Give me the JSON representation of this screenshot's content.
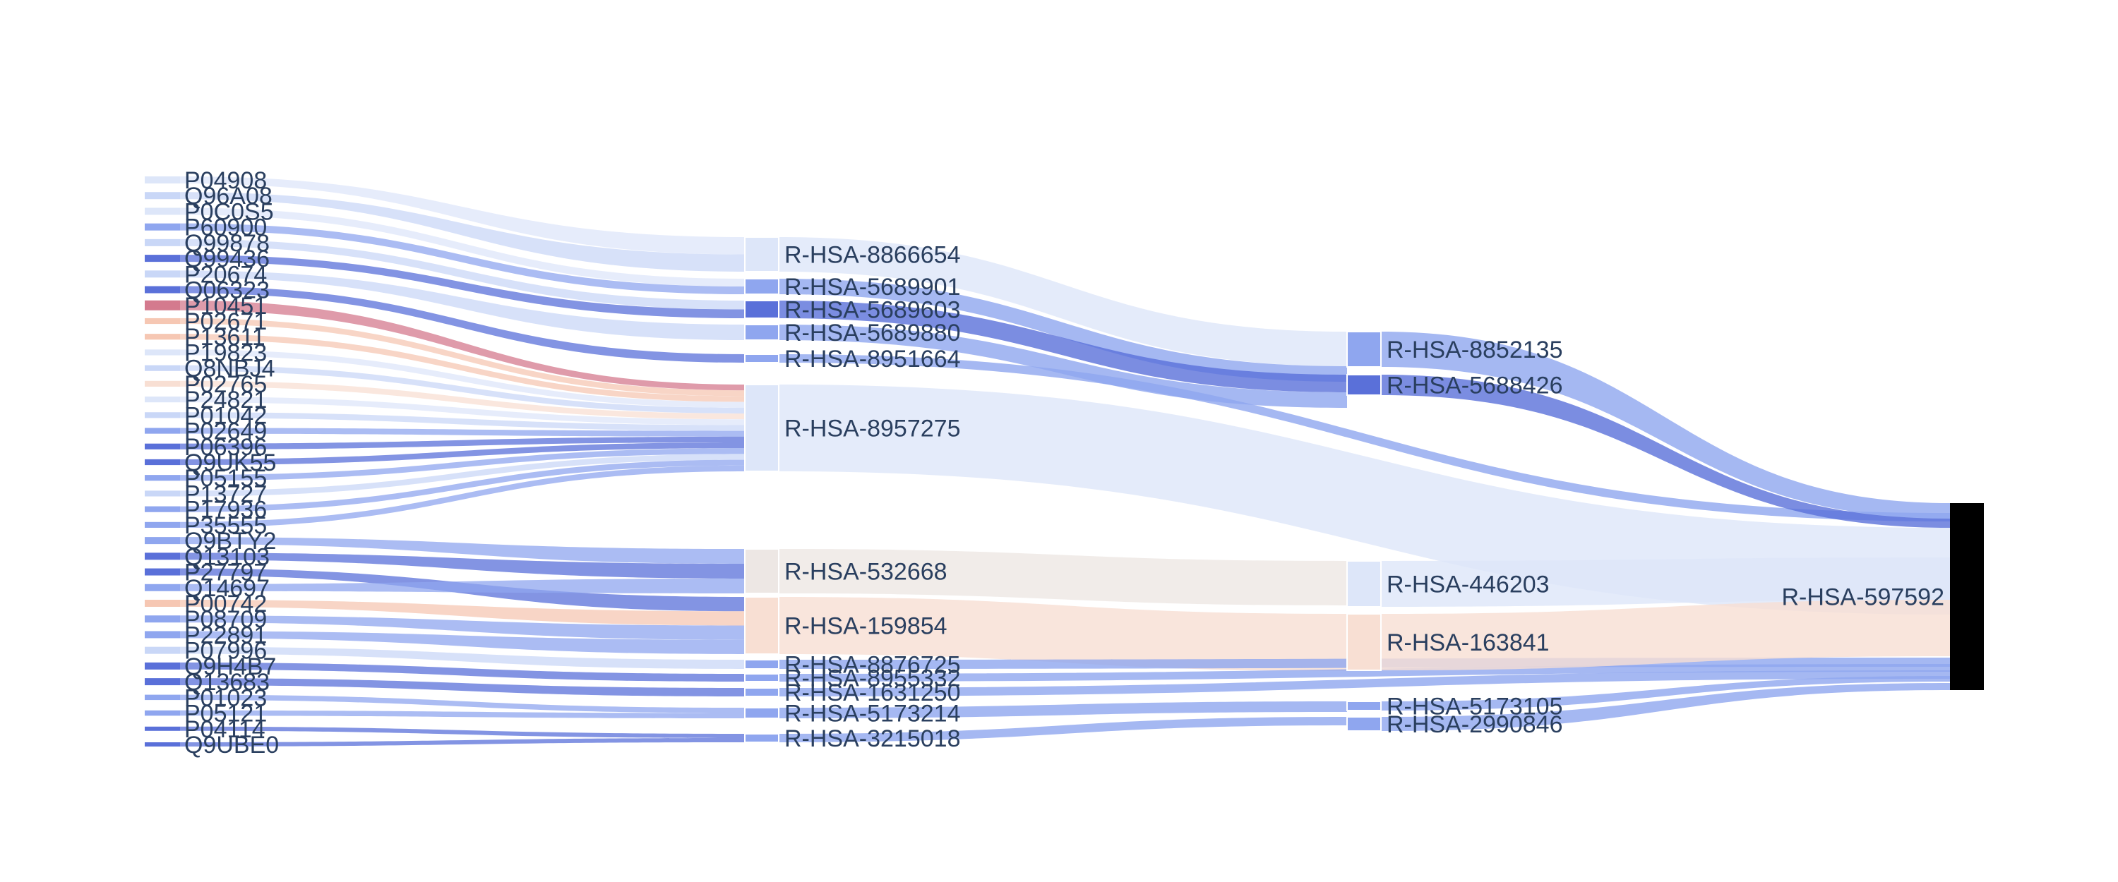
{
  "chart_data": {
    "type": "sankey",
    "title": "",
    "colors": {
      "blue_strong": "#5a70d9",
      "blue_mid": "#8fa6ef",
      "blue_light": "#c9d7f7",
      "blue_pale": "#dde6f9",
      "red_strong": "#d47a8e",
      "peach": "#f6c7b3",
      "peach_pale": "#f8dfd3",
      "gray_warm": "#ede7e4",
      "root": "#000000"
    },
    "sources": [
      "P04908",
      "Q96A08",
      "P0C0S5",
      "P60900",
      "Q99878",
      "Q99436",
      "P20674",
      "Q06323",
      "P10451",
      "P02671",
      "P13611",
      "P19823",
      "Q8NBJ4",
      "P02765",
      "P24821",
      "P01042",
      "P02649",
      "P06396",
      "Q9UK55",
      "P05155",
      "P13727",
      "P17936",
      "P35555",
      "Q9BTY2",
      "Q13103",
      "P27797",
      "Q14697",
      "P00742",
      "P08709",
      "P22891",
      "P07996",
      "Q9H4B7",
      "Q13683",
      "P01023",
      "P05121",
      "P04114",
      "Q9UBE0"
    ],
    "source_labels_shown": [
      "P04908",
      "Q96A08",
      "P60900",
      "Q99436",
      "Q06323",
      "P10451",
      "P19823",
      "Q8NBJ4",
      "P24821",
      "Q9UK55",
      "Q9BTY2",
      "Q14697",
      "Q9H4B7",
      "Q9UBE0"
    ],
    "middle": [
      "R-HSA-8866654",
      "R-HSA-5689901",
      "R-HSA-5689603",
      "R-HSA-5689880",
      "R-HSA-8951664",
      "R-HSA-8957275",
      "R-HSA-532668",
      "R-HSA-159854",
      "R-HSA-8876725",
      "R-HSA-8955332",
      "R-HSA-1631250",
      "R-HSA-5173214",
      "R-HSA-3215018"
    ],
    "second": [
      "R-HSA-8852135",
      "R-HSA-5688426",
      "R-HSA-446203",
      "R-HSA-163841",
      "R-HSA-5173105",
      "R-HSA-2990846"
    ],
    "root": "R-HSA-597592",
    "links_middle_to_second": [
      {
        "source": "R-HSA-8866654",
        "target": "R-HSA-8852135",
        "value": 6
      },
      {
        "source": "R-HSA-5689901",
        "target": "R-HSA-8852135",
        "value": 2
      },
      {
        "source": "R-HSA-5689603",
        "target": "R-HSA-5688426",
        "value": 3
      },
      {
        "source": "R-HSA-5689880",
        "target": "R-HSA-5688426",
        "value": 2
      },
      {
        "source": "R-HSA-8951664",
        "target": "R-HSA-597592",
        "value": 1
      },
      {
        "source": "R-HSA-8957275",
        "target": "R-HSA-597592",
        "value": 12
      },
      {
        "source": "R-HSA-532668",
        "target": "R-HSA-446203",
        "value": 6
      },
      {
        "source": "R-HSA-159854",
        "target": "R-HSA-163841",
        "value": 8
      },
      {
        "source": "R-HSA-8876725",
        "target": "R-HSA-597592",
        "value": 1
      },
      {
        "source": "R-HSA-8955332",
        "target": "R-HSA-597592",
        "value": 1
      },
      {
        "source": "R-HSA-1631250",
        "target": "R-HSA-597592",
        "value": 1
      },
      {
        "source": "R-HSA-5173214",
        "target": "R-HSA-5173105",
        "value": 2
      },
      {
        "source": "R-HSA-3215018",
        "target": "R-HSA-2990846",
        "value": 1
      }
    ],
    "links_second_to_root": [
      {
        "source": "R-HSA-8852135",
        "target": "R-HSA-597592",
        "value": 8
      },
      {
        "source": "R-HSA-5688426",
        "target": "R-HSA-597592",
        "value": 5
      },
      {
        "source": "R-HSA-446203",
        "target": "R-HSA-597592",
        "value": 6
      },
      {
        "source": "R-HSA-163841",
        "target": "R-HSA-597592",
        "value": 8
      },
      {
        "source": "R-HSA-5173105",
        "target": "R-HSA-597592",
        "value": 2
      },
      {
        "source": "R-HSA-2990846",
        "target": "R-HSA-597592",
        "value": 1
      }
    ]
  }
}
